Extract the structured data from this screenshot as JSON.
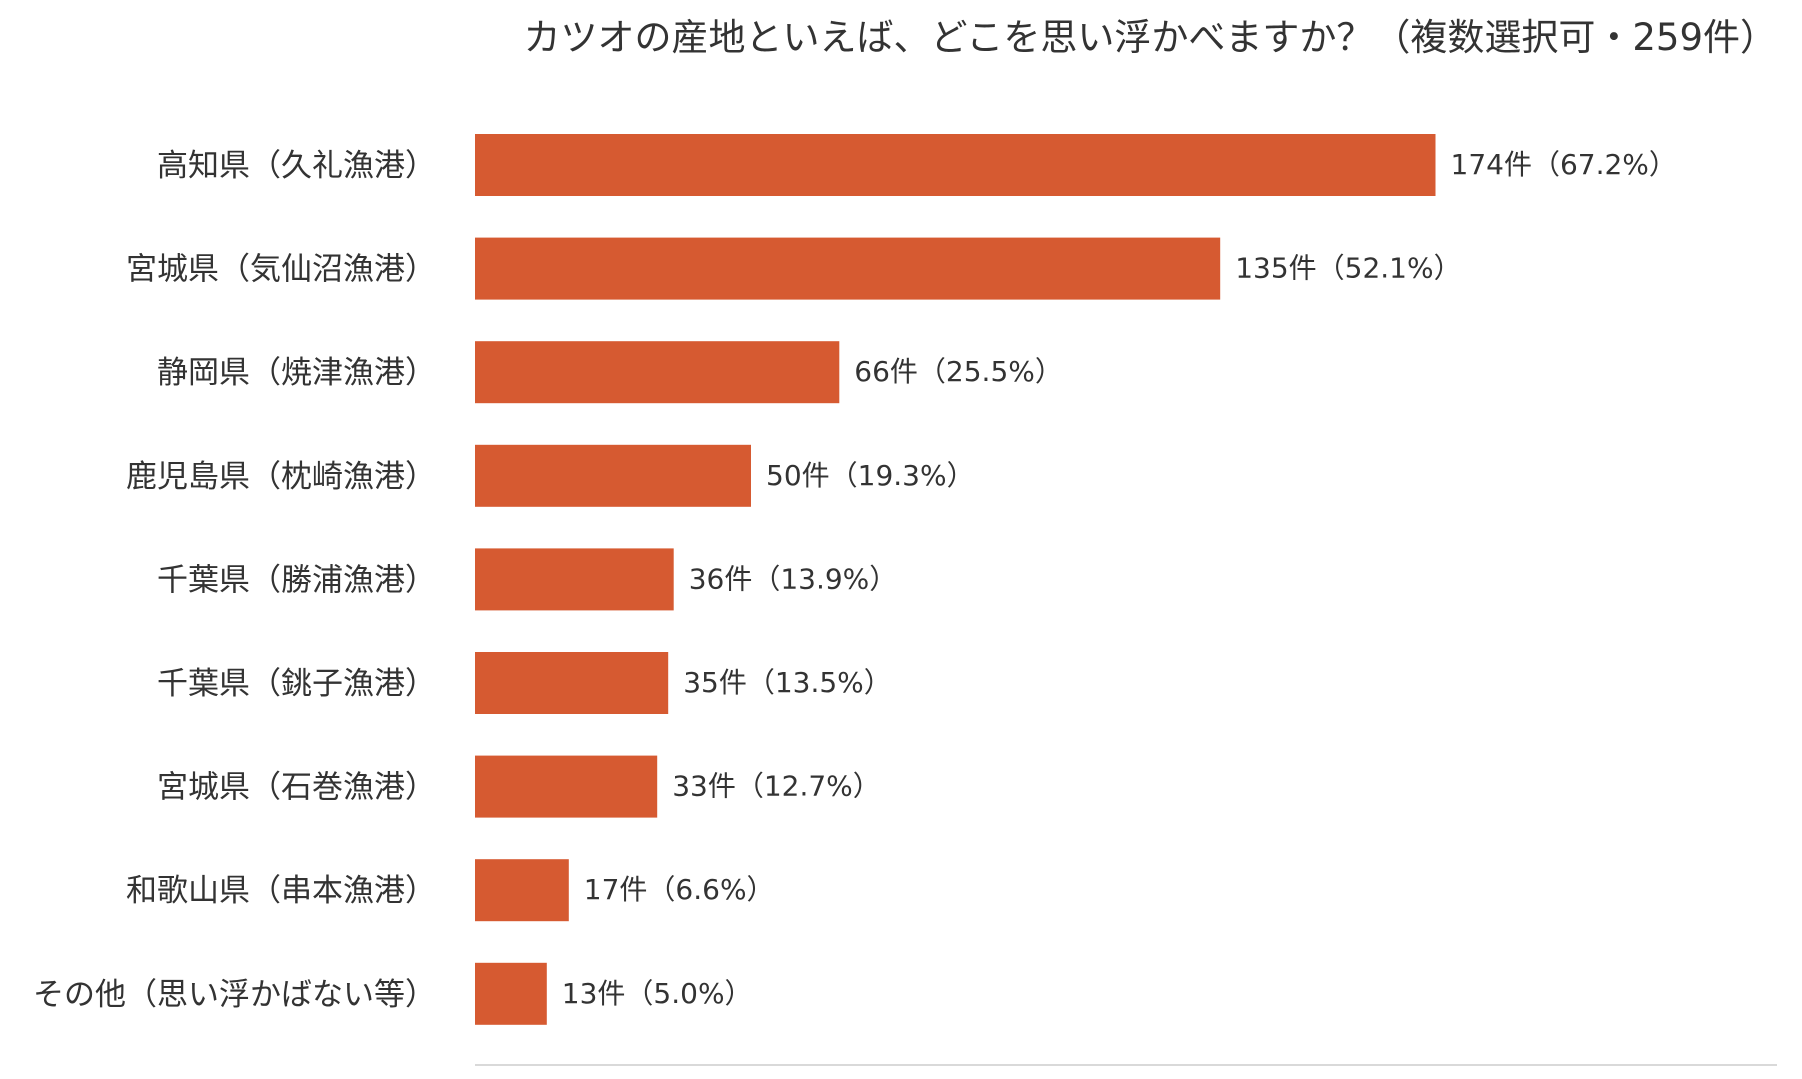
{
  "chart_data": {
    "type": "bar",
    "orientation": "horizontal",
    "title": "カツオの産地といえば、どこを思い浮かべますか？（複数選択可・259件）",
    "xlabel": "",
    "ylabel": "",
    "grid": false,
    "legend": "none",
    "xlim": [
      0,
      259
    ],
    "categories": [
      "高知県（久礼漁港）",
      "宮城県（気仙沼漁港）",
      "静岡県（焼津漁港）",
      "鹿児島県（枕崎漁港）",
      "千葉県（勝浦漁港）",
      "千葉県（銚子漁港）",
      "宮城県（石巻漁港）",
      "和歌山県（串本漁港）",
      "その他（思い浮かばない等）"
    ],
    "values": [
      174,
      135,
      66,
      50,
      36,
      35,
      33,
      17,
      13
    ],
    "data_labels": [
      "174件（67.2%）",
      "135件（52.1%）",
      "66件（25.5%）",
      "50件（19.3%）",
      "36件（13.9%）",
      "35件（13.5%）",
      "33件（12.7%）",
      "17件（6.6%）",
      "13件（5.0%）"
    ],
    "colors": {
      "bar": "#D65A31",
      "axis": "#d9d9d9",
      "text": "#333333"
    }
  }
}
